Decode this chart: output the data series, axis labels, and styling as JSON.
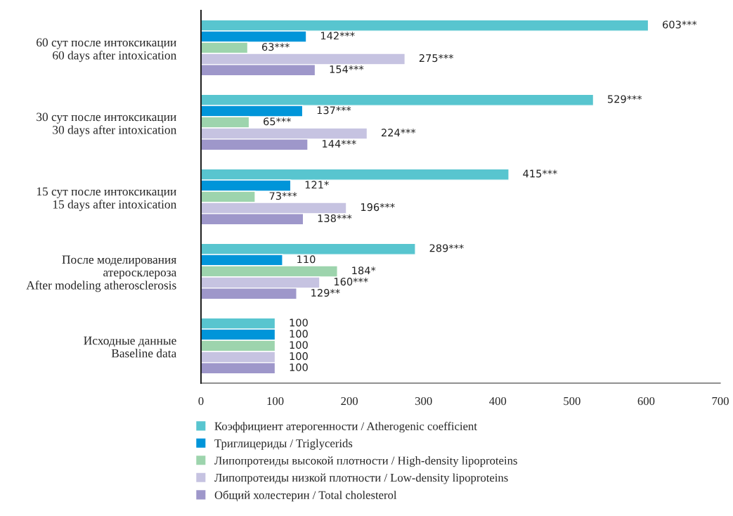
{
  "chart_data": {
    "type": "bar",
    "orientation": "horizontal",
    "categories": [
      "60 сут после интоксикации\n60 days after intoxication",
      "30 сут после интоксикации\n30 days after intoxication",
      "15 сут после интоксикации\n15 days after intoxication",
      "После моделирования\nатеросклероза\nAfter modeling atherosclerosis",
      "Исходные данные\nBaseline data"
    ],
    "series": [
      {
        "name": "Коэффициент атерогенности / Atherogenic coefficient",
        "color": "#58c5cf",
        "values": [
          603,
          529,
          415,
          289,
          100
        ],
        "value_labels": [
          "603***",
          "529***",
          "415***",
          "289***",
          "100"
        ]
      },
      {
        "name": "Триглицериды / Triglycerids",
        "color": "#0095d9",
        "values": [
          142,
          137,
          121,
          110,
          100
        ],
        "value_labels": [
          "142***",
          "137***",
          "121*",
          "110",
          "100"
        ]
      },
      {
        "name": "Липопротеиды высокой плотности / High-density lipoproteins",
        "color": "#9dd4ad",
        "values": [
          63,
          65,
          73,
          184,
          100
        ],
        "value_labels": [
          "63***",
          "65***",
          "73***",
          "184*",
          "100"
        ]
      },
      {
        "name": "Липопротеиды низкой плотности / Low-density lipoproteins",
        "color": "#c6c3e1",
        "values": [
          275,
          224,
          196,
          160,
          100
        ],
        "value_labels": [
          "275***",
          "224***",
          "196***",
          "160***",
          "100"
        ]
      },
      {
        "name": "Общий холестерин / Total cholesterol",
        "color": "#9e97ca",
        "values": [
          154,
          144,
          138,
          129,
          100
        ],
        "value_labels": [
          "154***",
          "144***",
          "138***",
          "129**",
          "100"
        ]
      }
    ],
    "xlim": [
      0,
      700
    ],
    "xticks": [
      0,
      100,
      200,
      300,
      400,
      500,
      600,
      700
    ],
    "grid": false,
    "legend": "bottom"
  }
}
